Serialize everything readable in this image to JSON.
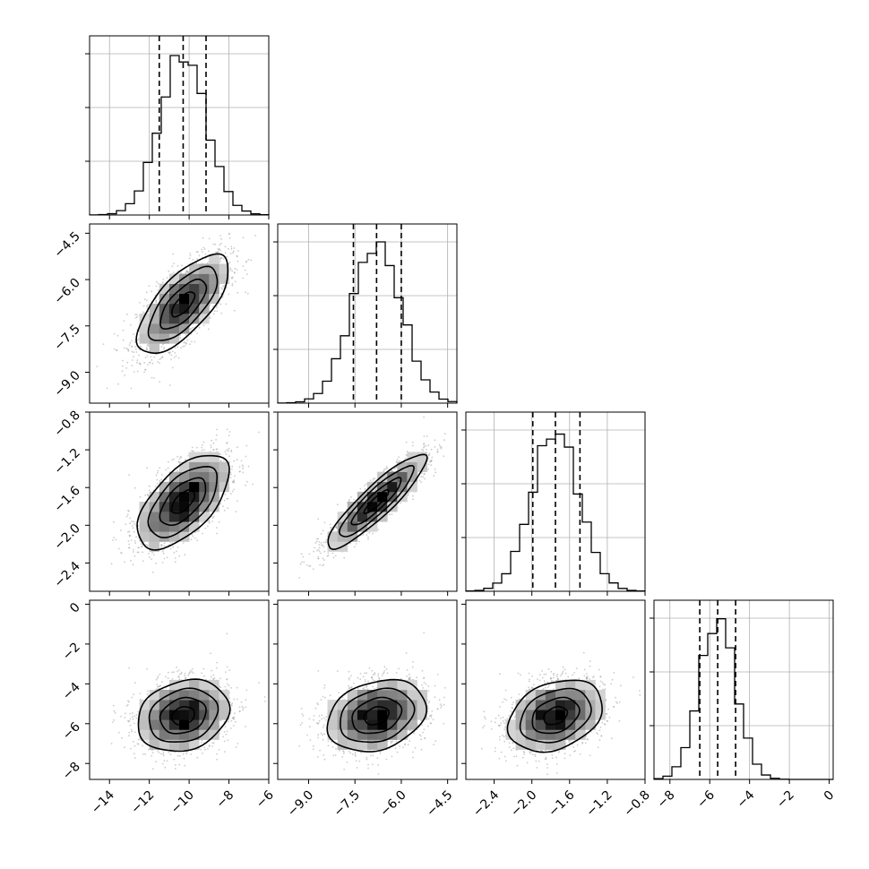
{
  "chart_data": {
    "type": "corner",
    "title": "",
    "grid": true,
    "parameters": [
      {
        "index": 0,
        "median": -10.3,
        "q16": -11.5,
        "q84": -9.15,
        "sigma": 1.15,
        "range": [
          -15,
          -6
        ],
        "ticks": [
          -14,
          -12,
          -10,
          -8,
          -6
        ],
        "tick_labels": [
          "−14",
          "−12",
          "−10",
          "−8",
          "−6"
        ]
      },
      {
        "index": 1,
        "median": -6.8,
        "q16": -7.55,
        "q84": -6.0,
        "sigma": 0.8,
        "range": [
          -10,
          -4.2
        ],
        "ticks": [
          -9.0,
          -7.5,
          -6.0,
          -4.5
        ],
        "tick_labels": [
          "−9.0",
          "−7.5",
          "−6.0",
          "−4.5"
        ]
      },
      {
        "index": 2,
        "median": -1.75,
        "q16": -1.99,
        "q84": -1.49,
        "sigma": 0.25,
        "range": [
          -2.7,
          -0.8
        ],
        "ticks": [
          -2.4,
          -2.0,
          -1.6,
          -1.2,
          -0.8
        ],
        "tick_labels": [
          "−2.4",
          "−2.0",
          "−1.6",
          "−1.2",
          "−0.8"
        ]
      },
      {
        "index": 3,
        "median": -5.6,
        "q16": -6.5,
        "q84": -4.7,
        "sigma": 0.9,
        "range": [
          -8.8,
          0.2
        ],
        "ticks": [
          -8,
          -6,
          -4,
          -2,
          0
        ],
        "tick_labels": [
          "−8",
          "−6",
          "−4",
          "−2",
          "0"
        ]
      }
    ],
    "correlations": [
      {
        "pair": [
          0,
          1
        ],
        "rho": 0.7
      },
      {
        "pair": [
          0,
          2
        ],
        "rho": 0.6
      },
      {
        "pair": [
          1,
          2
        ],
        "rho": 0.9
      },
      {
        "pair": [
          0,
          3
        ],
        "rho": 0.2
      },
      {
        "pair": [
          1,
          3
        ],
        "rho": 0.25
      },
      {
        "pair": [
          2,
          3
        ],
        "rho": 0.3
      }
    ],
    "quantiles": [
      0.16,
      0.5,
      0.84
    ],
    "diagonal_type": "histogram",
    "offdiagonal_type": "2d-density-contour"
  }
}
